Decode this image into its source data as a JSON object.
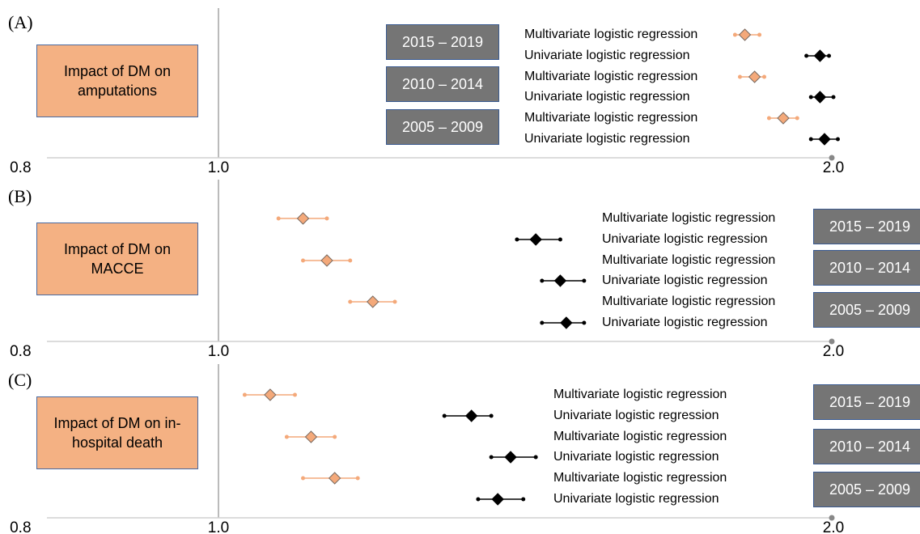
{
  "chart_data": [
    {
      "type": "forest",
      "panel": "(A)",
      "title": "Impact of DM on amputations",
      "categories": [
        "2015 – 2019",
        "2010 – 2014",
        "2005 – 2009"
      ],
      "series": [
        {
          "name": "Multivariate logistic regression",
          "color": "#f4a97a",
          "values": [
            1.81,
            1.83,
            1.89
          ],
          "lower": [
            1.79,
            1.8,
            1.86
          ],
          "upper": [
            1.84,
            1.85,
            1.92
          ]
        },
        {
          "name": "Univariate logistic regression",
          "color": "#000000",
          "values": [
            1.97,
            1.97,
            1.98
          ],
          "lower": [
            1.94,
            1.95,
            1.95
          ],
          "upper": [
            1.99,
            2.0,
            2.01
          ]
        }
      ],
      "xlim": [
        0.8,
        2.0
      ],
      "xticks": [
        0.8,
        {
          "value": 1,
          "label": "1.0"
        },
        {
          "value": 2,
          "label": "2.0"
        }
      ],
      "log_x": true
    },
    {
      "type": "forest",
      "panel": "(B)",
      "title": "Impact of DM on MACCE",
      "categories": [
        "2015 – 2019",
        "2010 – 2014",
        "2005 – 2009"
      ],
      "series": [
        {
          "name": "Multivariate logistic regression",
          "color": "#f4a97a",
          "values": [
            1.1,
            1.13,
            1.19
          ],
          "lower": [
            1.07,
            1.1,
            1.16
          ],
          "upper": [
            1.13,
            1.16,
            1.22
          ]
        },
        {
          "name": "Univariate logistic regression",
          "color": "#000000",
          "values": [
            1.43,
            1.47,
            1.48
          ],
          "lower": [
            1.4,
            1.44,
            1.44
          ],
          "upper": [
            1.47,
            1.51,
            1.51
          ]
        }
      ],
      "xlim": [
        0.8,
        2.0
      ],
      "xticks": [
        0.8,
        {
          "value": 1,
          "label": "1.0"
        },
        {
          "value": 2,
          "label": "2.0"
        }
      ],
      "log_x": true
    },
    {
      "type": "forest",
      "panel": "(C)",
      "title": "Impact of DM on in-hospital death",
      "categories": [
        "2015 – 2019",
        "2010 – 2014",
        "2005 – 2009"
      ],
      "series": [
        {
          "name": "Multivariate logistic regression",
          "color": "#f4a97a",
          "values": [
            1.06,
            1.11,
            1.14
          ],
          "lower": [
            1.03,
            1.08,
            1.1
          ],
          "upper": [
            1.09,
            1.14,
            1.17
          ]
        },
        {
          "name": "Univariate logistic regression",
          "color": "#000000",
          "values": [
            1.33,
            1.39,
            1.37
          ],
          "lower": [
            1.29,
            1.36,
            1.34
          ],
          "upper": [
            1.36,
            1.43,
            1.41
          ]
        }
      ],
      "xlim": [
        0.8,
        2.0
      ],
      "xticks": [
        0.8,
        {
          "value": 1,
          "label": "1.0"
        },
        {
          "value": 2,
          "label": "2.0"
        }
      ],
      "log_x": true
    }
  ]
}
